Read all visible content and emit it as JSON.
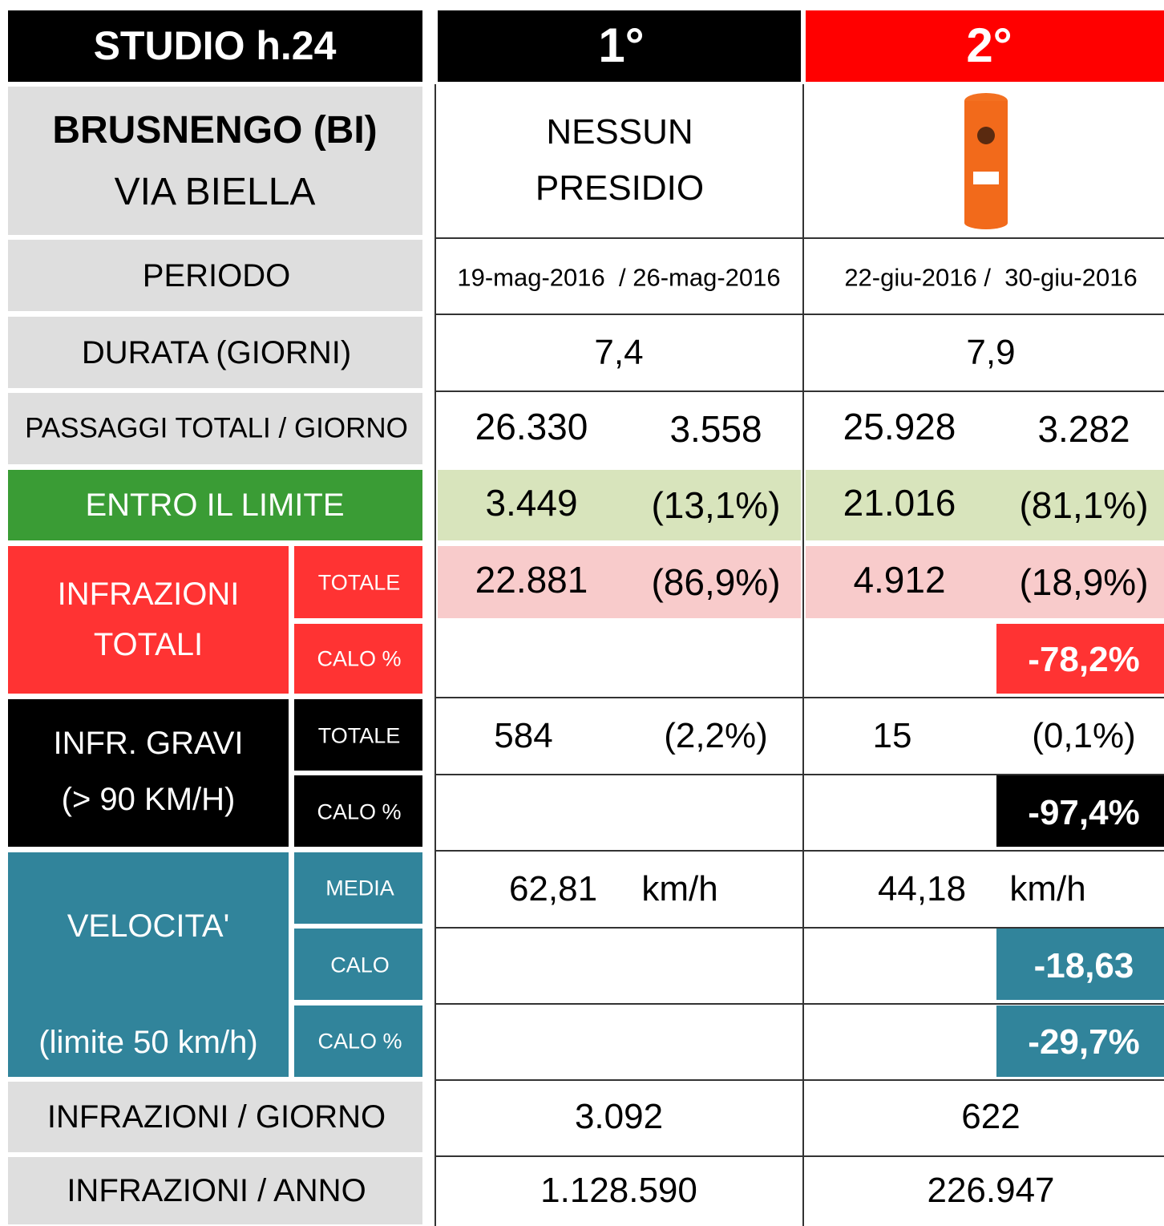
{
  "header": {
    "title": "STUDIO h.24",
    "col1": "1°",
    "col2": "2°"
  },
  "location": {
    "name": "BRUSNENGO (BI)",
    "street": "VIA BIELLA",
    "col1": [
      "NESSUN",
      "PRESIDIO"
    ]
  },
  "periodo": {
    "label": "PERIODO",
    "col1": "19-mag-2016  / 26-mag-2016",
    "col2": "22-giu-2016 /  30-giu-2016"
  },
  "durata": {
    "label": "DURATA (GIORNI)",
    "col1": "7,4",
    "col2": "7,9"
  },
  "passaggi": {
    "label": "PASSAGGI TOTALI / GIORNO",
    "col1": [
      "26.330",
      "3.558"
    ],
    "col2": [
      "25.928",
      "3.282"
    ]
  },
  "entro": {
    "label": "ENTRO IL LIMITE",
    "col1": [
      "3.449",
      "(13,1%)"
    ],
    "col2": [
      "21.016",
      "(81,1%)"
    ]
  },
  "infrazioni": {
    "label": [
      "INFRAZIONI",
      "TOTALI"
    ],
    "totale": {
      "label": "TOTALE",
      "col1": [
        "22.881",
        "(86,9%)"
      ],
      "col2": [
        "4.912",
        "(18,9%)"
      ]
    },
    "calo": {
      "label": "CALO %",
      "col2": "-78,2%"
    }
  },
  "gravi": {
    "label": [
      "INFR. GRAVI",
      "(> 90 KM/H)"
    ],
    "totale": {
      "label": "TOTALE",
      "col1": [
        "584",
        "(2,2%)"
      ],
      "col2": [
        "15",
        "(0,1%)"
      ]
    },
    "calo": {
      "label": "CALO %",
      "col2": "-97,4%"
    }
  },
  "velocita": {
    "label": "VELOCITA'",
    "note": "(limite 50 km/h)",
    "media": {
      "label": "MEDIA",
      "col1": [
        "62,81",
        "km/h"
      ],
      "col2": [
        "44,18",
        "km/h"
      ]
    },
    "calo": {
      "label": "CALO",
      "col2": "-18,63"
    },
    "calo_pct": {
      "label": "CALO %",
      "col2": "-29,7%"
    }
  },
  "giorno": {
    "label": "INFRAZIONI / GIORNO",
    "col1": "3.092",
    "col2": "622"
  },
  "anno": {
    "label": "INFRAZIONI / ANNO",
    "col1": "1.128.590",
    "col2": "226.947"
  }
}
